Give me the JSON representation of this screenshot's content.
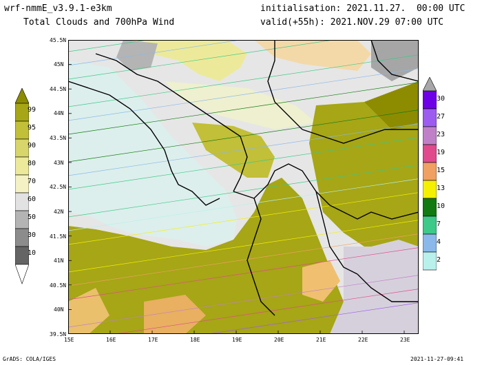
{
  "header": {
    "model": "wrf-nmmE_v3.9.1-e3km",
    "product": "Total Clouds and 700hPa Wind",
    "init": "initialisation: 2021.11.27.  00:00 UTC",
    "valid": "valid(+55h): 2021.NOV.29 07:00 UTC"
  },
  "footer": {
    "left": "GrADS: COLA/IGES",
    "right": "2021-11-27-09:41"
  },
  "map": {
    "lat_labels": [
      "45.5N",
      "45N",
      "44.5N",
      "44N",
      "43.5N",
      "43N",
      "42.5N",
      "42N",
      "41.5N",
      "41N",
      "40.5N",
      "40N",
      "39.5N"
    ],
    "lon_labels": [
      "15E",
      "16E",
      "17E",
      "18E",
      "19E",
      "20E",
      "21E",
      "22E",
      "23E"
    ],
    "lat_range": [
      39.5,
      45.5
    ],
    "lon_range": [
      15.0,
      23.35
    ]
  },
  "cloud_scale": {
    "labels": [
      "99",
      "95",
      "90",
      "80",
      "70",
      "60",
      "50",
      "30",
      "10"
    ],
    "colors": [
      "#8d8c00",
      "#a6a616",
      "#c2bf39",
      "#d8d56a",
      "#ecea9a",
      "#f4f2c4",
      "#e2e2e2",
      "#b4b4b4",
      "#8c8c8c",
      "#646464",
      "#4a4a4a"
    ]
  },
  "wind_scale": {
    "labels": [
      "30",
      "27",
      "23",
      "19",
      "15",
      "13",
      "10",
      "7",
      "4",
      "2"
    ],
    "colors": [
      "#a7a7a7",
      "#6e00e6",
      "#9d5cf0",
      "#c080c8",
      "#e04a8c",
      "#f0a060",
      "#f5f000",
      "#117a11",
      "#3dc988",
      "#8ab8ea",
      "#b8f0ec"
    ]
  }
}
